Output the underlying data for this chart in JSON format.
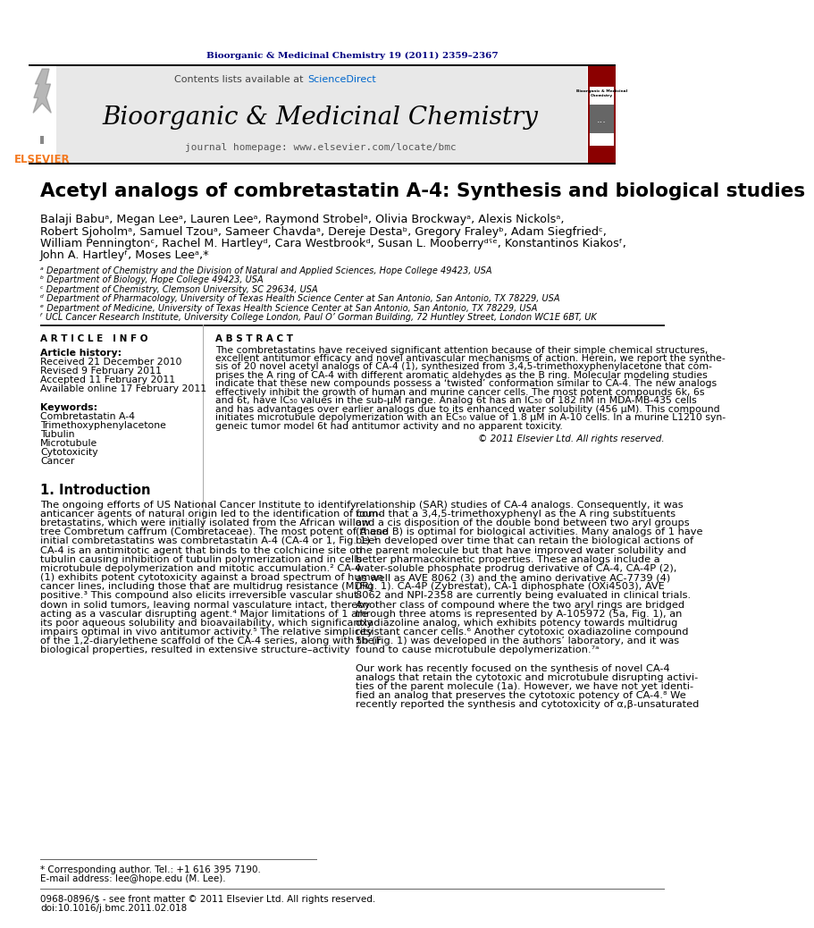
{
  "journal_ref": "Bioorganic & Medicinal Chemistry 19 (2011) 2359–2367",
  "journal_name": "Bioorganic & Medicinal Chemistry",
  "journal_homepage": "journal homepage: www.elsevier.com/locate/bmc",
  "contents_text": "Contents lists available at ",
  "sciencedirect_text": "ScienceDirect",
  "elsevier_text": "ELSEVIER",
  "article_title": "Acetyl analogs of combretastatin A-4: Synthesis and biological studies",
  "affil_a": "ᵃ Department of Chemistry and the Division of Natural and Applied Sciences, Hope College 49423, USA",
  "affil_b": "ᵇ Department of Biology, Hope College 49423, USA",
  "affil_c": "ᶜ Department of Chemistry, Clemson University, SC 29634, USA",
  "affil_d": "ᵈ Department of Pharmacology, University of Texas Health Science Center at San Antonio, San Antonio, TX 78229, USA",
  "affil_e": "ᵉ Department of Medicine, University of Texas Health Science Center at San Antonio, San Antonio, TX 78229, USA",
  "affil_f": "ᶠ UCL Cancer Research Institute, University College London, Paul O’ Gorman Building, 72 Huntley Street, London WC1E 6BT, UK",
  "copyright": "© 2011 Elsevier Ltd. All rights reserved.",
  "footnote_star": "* Corresponding author. Tel.: +1 616 395 7190.",
  "footnote_email": "E-mail address: lee@hope.edu (M. Lee).",
  "footer_issn": "0968-0896/$ - see front matter © 2011 Elsevier Ltd. All rights reserved.",
  "footer_doi": "doi:10.1016/j.bmc.2011.02.018",
  "bg_color": "#ffffff",
  "header_bg": "#e8e8e8",
  "dark_red": "#8b0000",
  "navy": "#000080",
  "blue_link": "#0066cc",
  "elsevier_orange": "#f47920",
  "authors_lines": [
    "Balaji Babuᵃ, Megan Leeᵃ, Lauren Leeᵃ, Raymond Strobelᵃ, Olivia Brockwayᵃ, Alexis Nickolsᵃ,",
    "Robert Sjoholmᵃ, Samuel Tzouᵃ, Sameer Chavdaᵃ, Dereje Destaᵇ, Gregory Fraleyᵇ, Adam Siegfriedᶜ,",
    "William Penningtonᶜ, Rachel M. Hartleyᵈ, Cara Westbrookᵈ, Susan L. Mooberryᵈˤᵉ, Konstantinos Kiakosᶠ,",
    "John A. Hartleyᶠ, Moses Leeᵃ,*"
  ],
  "keywords": [
    "Combretastatin A-4",
    "Trimethoxyphenylacetone",
    "Tubulin",
    "Microtubule",
    "Cytotoxicity",
    "Cancer"
  ],
  "abstract_lines": [
    "The combretastatins have received significant attention because of their simple chemical structures,",
    "excellent antitumor efficacy and novel antivascular mechanisms of action. Herein, we report the synthe-",
    "sis of 20 novel acetyl analogs of CA-4 (1), synthesized from 3,4,5-trimethoxyphenylacetone that com-",
    "prises the A ring of CA-4 with different aromatic aldehydes as the B ring. Molecular modeling studies",
    "indicate that these new compounds possess a ‘twisted’ conformation similar to CA-4. The new analogs",
    "effectively inhibit the growth of human and murine cancer cells. The most potent compounds 6k, 6s",
    "and 6t, have IC₅₀ values in the sub-μM range. Analog 6t has an IC₅₀ of 182 nM in MDA-MB-435 cells",
    "and has advantages over earlier analogs due to its enhanced water solubility (456 μM). This compound",
    "initiates microtubule depolymerization with an EC₅₀ value of 1.8 μM in A-10 cells. In a murine L1210 syn-",
    "geneic tumor model 6t had antitumor activity and no apparent toxicity."
  ],
  "intro_left_lines": [
    "The ongoing efforts of US National Cancer Institute to identify",
    "anticancer agents of natural origin led to the identification of com-",
    "bretastatins, which were initially isolated from the African willow",
    "tree Combretum caffrum (Combretaceae). The most potent of these",
    "initial combretastatins was combretastatin A-4 (CA-4 or 1, Fig. 1).¹",
    "CA-4 is an antimitotic agent that binds to the colchicine site on",
    "tubulin causing inhibition of tubulin polymerization and in cells",
    "microtubule depolymerization and mitotic accumulation.² CA-4",
    "(1) exhibits potent cytotoxicity against a broad spectrum of human",
    "cancer lines, including those that are multidrug resistance (MDR)",
    "positive.³ This compound also elicits irreversible vascular shut-",
    "down in solid tumors, leaving normal vasculature intact, thereby",
    "acting as a vascular disrupting agent.⁴ Major limitations of 1 are",
    "its poor aqueous solubility and bioavailability, which significantly",
    "impairs optimal in vivo antitumor activity.⁵ The relative simplicity",
    "of the 1,2-diarylethene scaffold of the CA-4 series, along with their",
    "biological properties, resulted in extensive structure–activity"
  ],
  "intro_right_lines": [
    "relationship (SAR) studies of CA-4 analogs. Consequently, it was",
    "found that a 3,4,5-trimethoxyphenyl as the A ring substituents",
    "and a cis disposition of the double bond between two aryl groups",
    "(A and B) is optimal for biological activities. Many analogs of 1 have",
    "been developed over time that can retain the biological actions of",
    "the parent molecule but that have improved water solubility and",
    "better pharmacokinetic properties. These analogs include a",
    "water-soluble phosphate prodrug derivative of CA-4, CA-4P (2),",
    "as well as AVE 8062 (3) and the amino derivative AC-7739 (4)",
    "(Fig. 1). CA-4P (Zybrestat), CA-1 diphosphate (OXi4503), AVE",
    "8062 and NPI-2358 are currently being evaluated in clinical trials.",
    "Another class of compound where the two aryl rings are bridged",
    "through three atoms is represented by A-105972 (5a, Fig. 1), an",
    "oxadiazoline analog, which exhibits potency towards multidrug",
    "resistant cancer cells.⁶ Another cytotoxic oxadiazoline compound",
    "5b (Fig. 1) was developed in the authors’ laboratory, and it was",
    "found to cause microtubule depolymerization.⁷ᵃ",
    "",
    "Our work has recently focused on the synthesis of novel CA-4",
    "analogs that retain the cytotoxic and microtubule disrupting activi-",
    "ties of the parent molecule (1a). However, we have not yet identi-",
    "fied an analog that preserves the cytotoxic potency of CA-4.⁸ We",
    "recently reported the synthesis and cytotoxicity of α,β-unsaturated"
  ]
}
